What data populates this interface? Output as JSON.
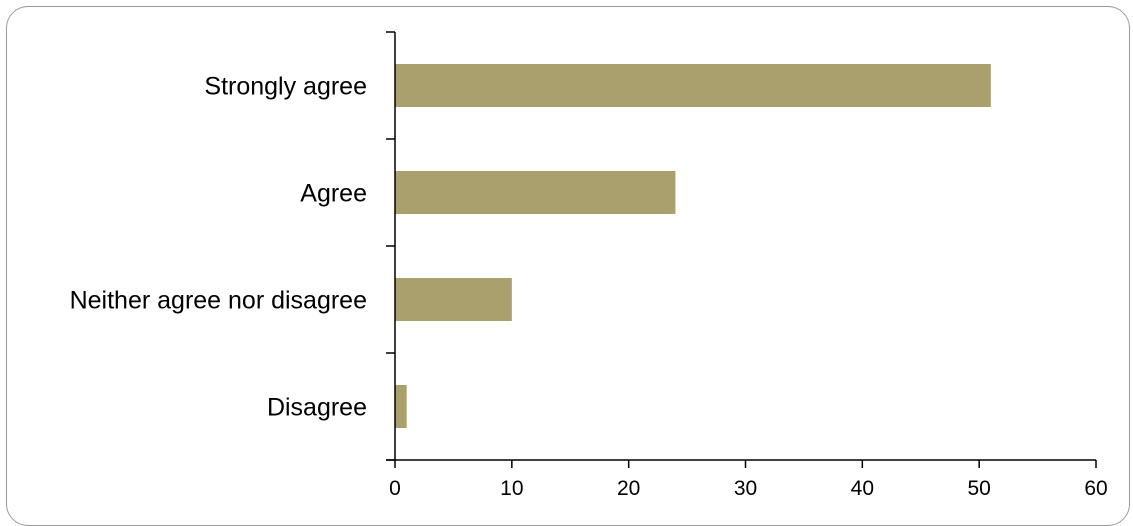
{
  "chart_data": {
    "type": "bar",
    "orientation": "horizontal",
    "categories": [
      "Strongly agree",
      "Agree",
      "Neither agree nor disagree",
      "Disagree"
    ],
    "values": [
      51,
      24,
      10,
      1
    ],
    "title": "",
    "xlabel": "",
    "ylabel": "",
    "xlim": [
      0,
      60
    ],
    "xticks": [
      "0",
      "10",
      "20",
      "30",
      "40",
      "50",
      "60"
    ],
    "grid": false,
    "legend": "none",
    "bar_color": "#a9a06e",
    "axis_color": "#000000"
  }
}
